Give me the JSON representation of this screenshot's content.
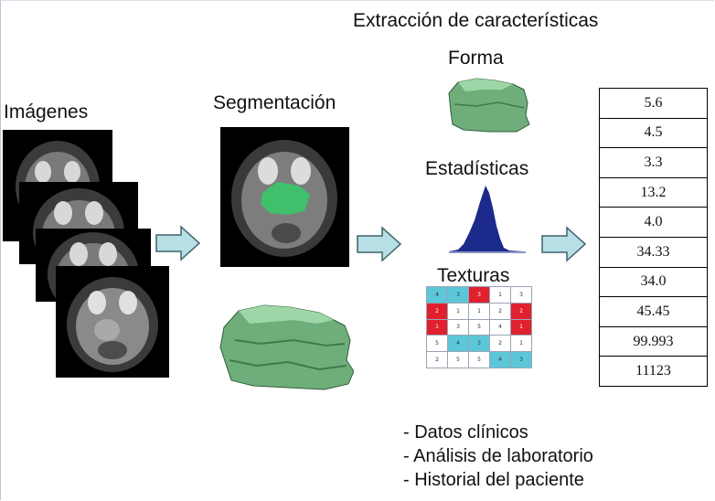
{
  "labels": {
    "imagenes": "Imágenes",
    "segmentacion": "Segmentación",
    "extraccion": "Extracción de características",
    "forma": "Forma",
    "estadisticas": "Estadísticas",
    "texturas": "Texturas"
  },
  "feature_values": [
    "5.6",
    "4.5",
    "3.3",
    "13.2",
    "4.0",
    "34.33",
    "34.0",
    "45.45",
    "99.993",
    "11123"
  ],
  "bullets": [
    "- Datos clínicos",
    "- Análisis de laboratorio",
    "- Historial del paciente"
  ],
  "texture_matrix": [
    [
      "4",
      "3",
      "3",
      "1",
      "3"
    ],
    [
      "2",
      "1",
      "1",
      "2",
      "2"
    ],
    [
      "1",
      "3",
      "5",
      "4",
      "1"
    ],
    [
      "5",
      "4",
      "3",
      "2",
      "1"
    ],
    [
      "2",
      "5",
      "5",
      "4",
      "3"
    ]
  ],
  "texture_colors": [
    [
      "c",
      "c",
      "r",
      "w",
      "w"
    ],
    [
      "r",
      "w",
      "w",
      "w",
      "r"
    ],
    [
      "r",
      "w",
      "w",
      "w",
      "r"
    ],
    [
      "w",
      "c",
      "c",
      "w",
      "w"
    ],
    [
      "w",
      "w",
      "w",
      "c",
      "c"
    ]
  ],
  "colors": {
    "arrow_fill": "#b6dfe6",
    "arrow_stroke": "#41606a",
    "segment_green": "#3fc06a",
    "shape_green": "#6fae7b",
    "histogram": "#1c2a8c",
    "cell_cyan": "#5cc7d9",
    "cell_red": "#e0202f"
  }
}
